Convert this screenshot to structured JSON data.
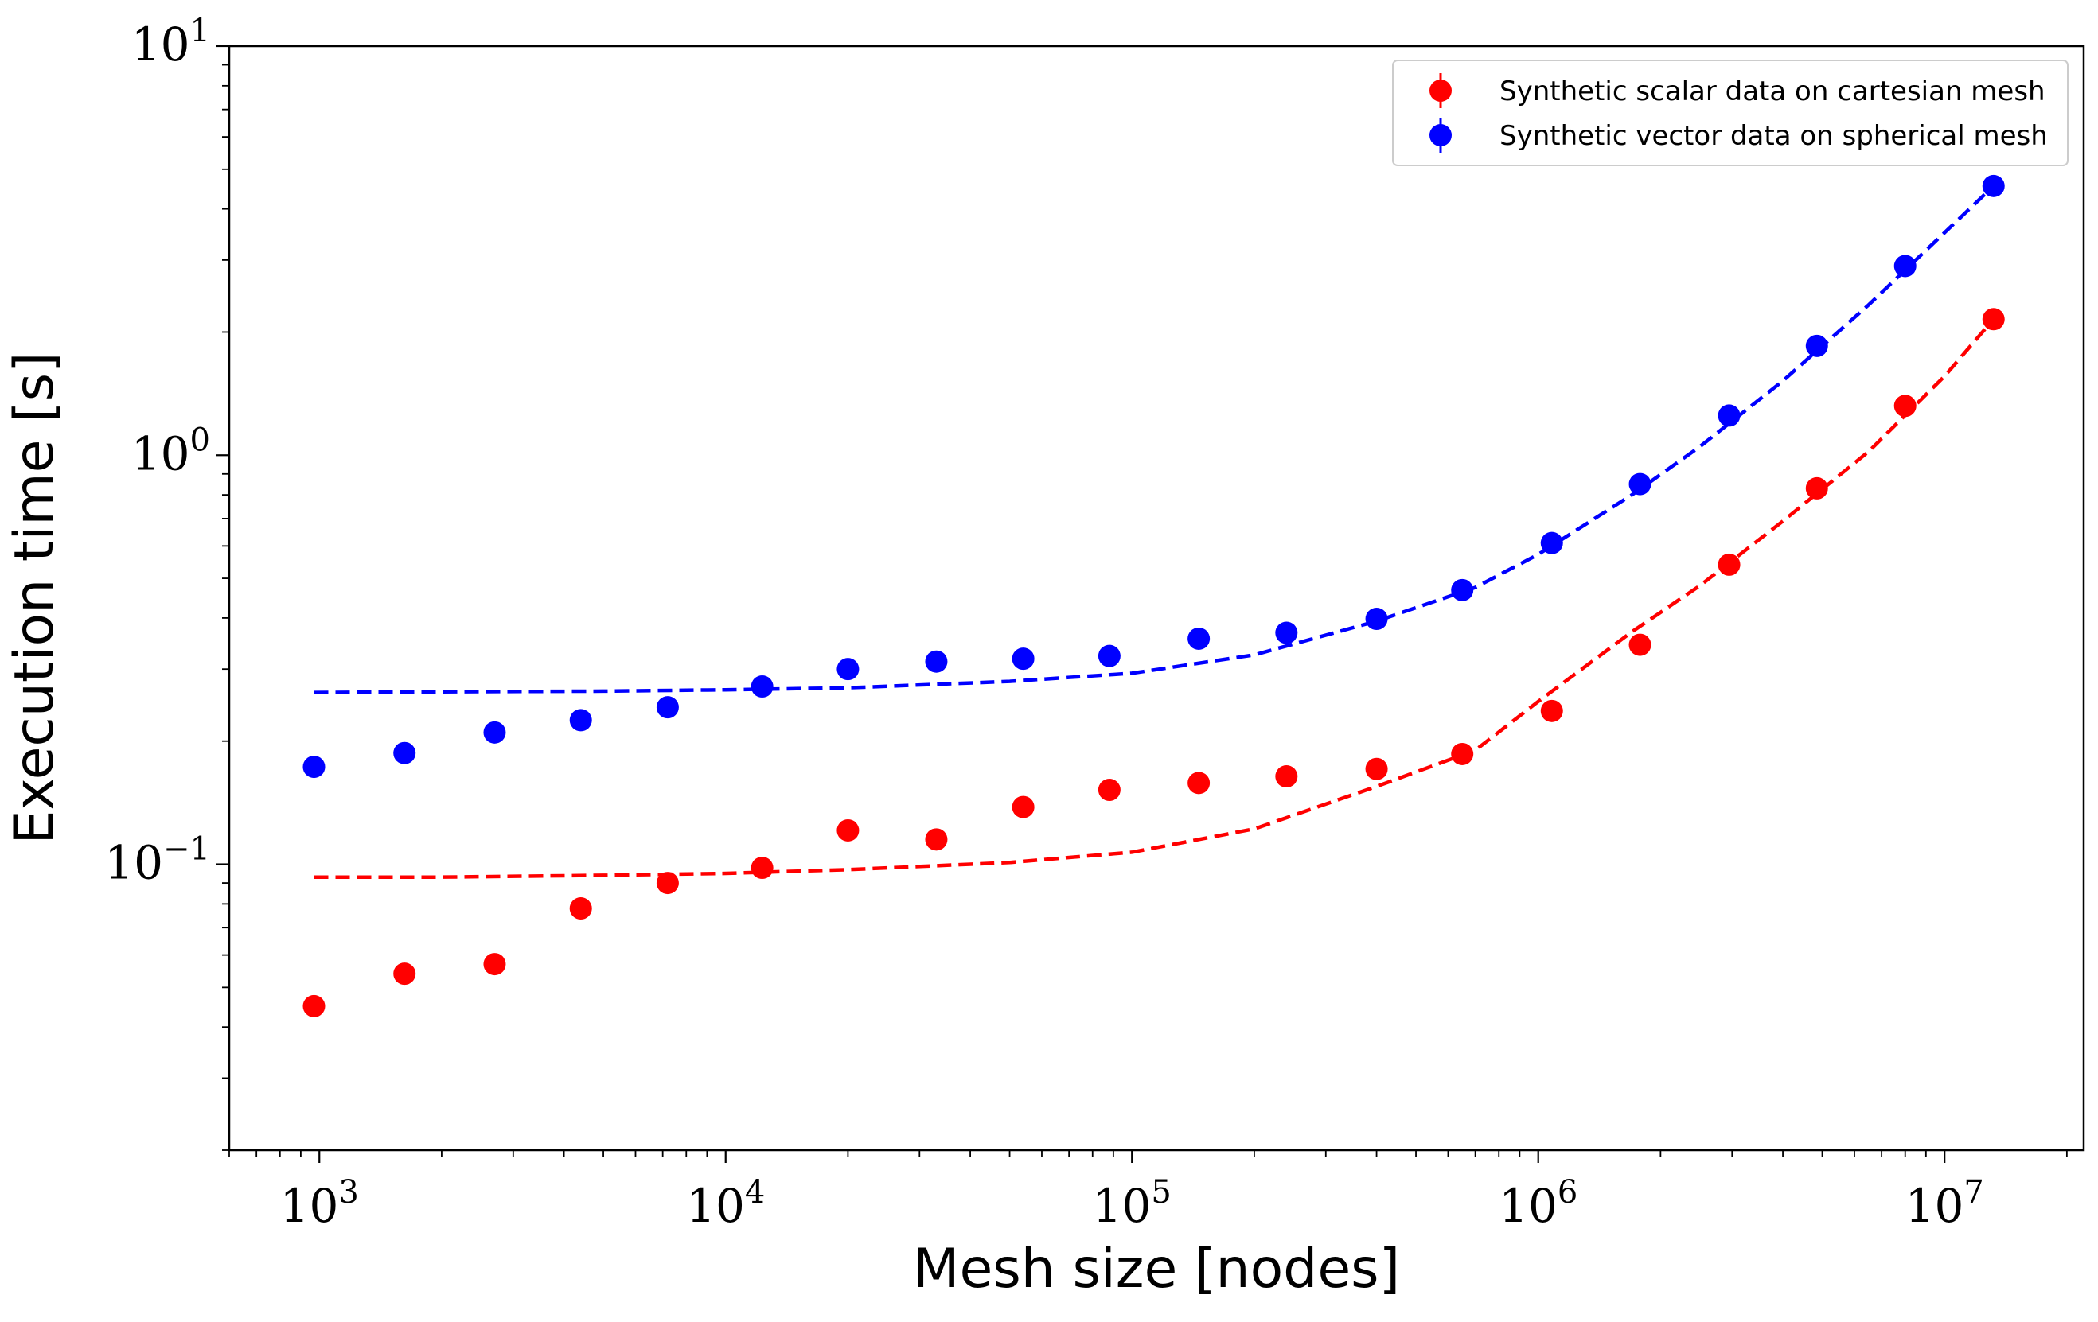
{
  "chart_data": {
    "type": "scatter",
    "xlabel": "Mesh size [nodes]",
    "ylabel": "Execution time [s]",
    "xscale": "log",
    "yscale": "log",
    "xlim": [
      600,
      22000000
    ],
    "ylim": [
      0.02,
      10
    ],
    "x_ticks": [
      {
        "value": 1000,
        "base": "10",
        "exp": "3"
      },
      {
        "value": 10000,
        "base": "10",
        "exp": "4"
      },
      {
        "value": 100000,
        "base": "10",
        "exp": "5"
      },
      {
        "value": 1000000,
        "base": "10",
        "exp": "6"
      },
      {
        "value": 10000000,
        "base": "10",
        "exp": "7"
      }
    ],
    "y_ticks": [
      {
        "value": 0.1,
        "base": "10",
        "exp": "−1"
      },
      {
        "value": 1,
        "base": "10",
        "exp": "0"
      },
      {
        "value": 10,
        "base": "10",
        "exp": "1"
      }
    ],
    "grid": false,
    "legend_position": "top-right",
    "x": [
      970,
      1620,
      2700,
      4400,
      7200,
      12300,
      20000,
      33000,
      54000,
      88000,
      146000,
      240000,
      400000,
      650000,
      1080000,
      1780000,
      2950000,
      4850000,
      8000000,
      13200000
    ],
    "series": [
      {
        "name": "Synthetic scalar data on cartesian mesh",
        "color": "#ff0000",
        "marker": "circle",
        "values": [
          0.045,
          0.054,
          0.057,
          0.078,
          0.09,
          0.098,
          0.121,
          0.115,
          0.138,
          0.152,
          0.158,
          0.164,
          0.171,
          0.186,
          0.237,
          0.344,
          0.54,
          0.83,
          1.32,
          2.15
        ],
        "fit": {
          "style": "dashed",
          "x": [
            970,
            2000,
            5000,
            10000,
            20000,
            50000,
            100000,
            200000,
            400000,
            700000,
            1000000,
            1700000,
            2500000,
            4000000,
            6500000,
            10000000,
            13200000
          ],
          "values": [
            0.093,
            0.093,
            0.094,
            0.095,
            0.097,
            0.101,
            0.107,
            0.122,
            0.155,
            0.19,
            0.25,
            0.37,
            0.48,
            0.69,
            1.02,
            1.56,
            2.15
          ]
        }
      },
      {
        "name": "Synthetic vector data on spherical mesh",
        "color": "#0000ff",
        "marker": "circle",
        "values": [
          0.173,
          0.187,
          0.21,
          0.225,
          0.242,
          0.272,
          0.3,
          0.313,
          0.318,
          0.323,
          0.356,
          0.368,
          0.398,
          0.468,
          0.61,
          0.85,
          1.25,
          1.85,
          2.9,
          4.55
        ],
        "fit": {
          "style": "dashed",
          "x": [
            970,
            2000,
            5000,
            10000,
            20000,
            50000,
            100000,
            200000,
            400000,
            700000,
            1000000,
            1700000,
            2500000,
            4000000,
            6500000,
            10000000,
            13200000
          ],
          "values": [
            0.263,
            0.264,
            0.265,
            0.267,
            0.27,
            0.28,
            0.293,
            0.325,
            0.393,
            0.475,
            0.572,
            0.8,
            1.05,
            1.52,
            2.33,
            3.5,
            4.55
          ]
        }
      }
    ]
  }
}
